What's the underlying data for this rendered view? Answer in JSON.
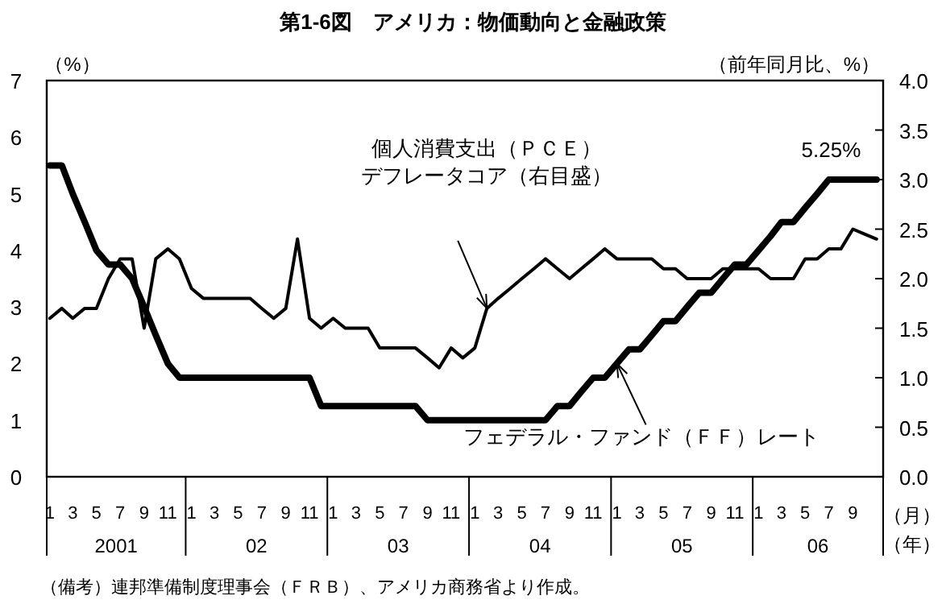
{
  "chart_data": {
    "type": "line",
    "title": "第1-6図　アメリカ：物価動向と金融政策",
    "x": [
      "2001-01",
      "2001-02",
      "2001-03",
      "2001-04",
      "2001-05",
      "2001-06",
      "2001-07",
      "2001-08",
      "2001-09",
      "2001-10",
      "2001-11",
      "2001-12",
      "2002-01",
      "2002-02",
      "2002-03",
      "2002-04",
      "2002-05",
      "2002-06",
      "2002-07",
      "2002-08",
      "2002-09",
      "2002-10",
      "2002-11",
      "2002-12",
      "2003-01",
      "2003-02",
      "2003-03",
      "2003-04",
      "2003-05",
      "2003-06",
      "2003-07",
      "2003-08",
      "2003-09",
      "2003-10",
      "2003-11",
      "2003-12",
      "2004-01",
      "2004-02",
      "2004-03",
      "2004-04",
      "2004-05",
      "2004-06",
      "2004-07",
      "2004-08",
      "2004-09",
      "2004-10",
      "2004-11",
      "2004-12",
      "2005-01",
      "2005-02",
      "2005-03",
      "2005-04",
      "2005-05",
      "2005-06",
      "2005-07",
      "2005-08",
      "2005-09",
      "2005-10",
      "2005-11",
      "2005-12",
      "2006-01",
      "2006-02",
      "2006-03",
      "2006-04",
      "2006-05",
      "2006-06",
      "2006-07",
      "2006-08",
      "2006-09",
      "2006-10",
      "2006-11"
    ],
    "xlim": [
      "2000-12-24",
      "2006-11-18"
    ],
    "xticks": [
      {
        "value": "2001-01",
        "label": "1"
      },
      {
        "value": "2001-03",
        "label": "3"
      },
      {
        "value": "2001-05",
        "label": "5"
      },
      {
        "value": "2001-07",
        "label": "7"
      },
      {
        "value": "2001-09",
        "label": "9"
      },
      {
        "value": "2001-11",
        "label": "11"
      },
      {
        "value": "2002-01",
        "label": "1"
      },
      {
        "value": "2002-03",
        "label": "3"
      },
      {
        "value": "2002-05",
        "label": "5"
      },
      {
        "value": "2002-07",
        "label": "7"
      },
      {
        "value": "2002-09",
        "label": "9"
      },
      {
        "value": "2002-11",
        "label": "11"
      },
      {
        "value": "2003-01",
        "label": "1"
      },
      {
        "value": "2003-03",
        "label": "3"
      },
      {
        "value": "2003-05",
        "label": "5"
      },
      {
        "value": "2003-07",
        "label": "7"
      },
      {
        "value": "2003-09",
        "label": "9"
      },
      {
        "value": "2003-11",
        "label": "11"
      },
      {
        "value": "2004-01",
        "label": "1"
      },
      {
        "value": "2004-03",
        "label": "3"
      },
      {
        "value": "2004-05",
        "label": "5"
      },
      {
        "value": "2004-07",
        "label": "7"
      },
      {
        "value": "2004-09",
        "label": "9"
      },
      {
        "value": "2004-11",
        "label": "11"
      },
      {
        "value": "2005-01",
        "label": "1"
      },
      {
        "value": "2005-03",
        "label": "3"
      },
      {
        "value": "2005-05",
        "label": "5"
      },
      {
        "value": "2005-07",
        "label": "7"
      },
      {
        "value": "2005-09",
        "label": "9"
      },
      {
        "value": "2005-11",
        "label": "11"
      },
      {
        "value": "2006-01",
        "label": "1"
      },
      {
        "value": "2006-03",
        "label": "3"
      },
      {
        "value": "2006-05",
        "label": "5"
      },
      {
        "value": "2006-07",
        "label": "7"
      },
      {
        "value": "2006-09",
        "label": "9"
      }
    ],
    "xlabel": "（月）",
    "ylabel": "（%）",
    "y2label": "（前年同月比、%）",
    "ylim": [
      0,
      7
    ],
    "yticks": [
      0,
      1,
      2,
      3,
      4,
      5,
      6,
      7
    ],
    "y2lim": [
      0,
      4
    ],
    "y2ticks": [
      {
        "value": 0,
        "label": "0.0"
      },
      {
        "value": 0.5,
        "label": "0.5"
      },
      {
        "value": 1,
        "label": "1.0"
      },
      {
        "value": 1.5,
        "label": "1.5"
      },
      {
        "value": 2,
        "label": "2.0"
      },
      {
        "value": 2.5,
        "label": "2.5"
      },
      {
        "value": 3,
        "label": "3.0"
      },
      {
        "value": 3.5,
        "label": "3.5"
      },
      {
        "value": 4,
        "label": "4.0"
      }
    ],
    "series": [
      {
        "color": "#000000",
        "values": [
          5.5,
          5.5,
          5.0,
          4.5,
          4.0,
          3.75,
          3.75,
          3.5,
          3.0,
          2.5,
          2.0,
          1.75,
          1.75,
          1.75,
          1.75,
          1.75,
          1.75,
          1.75,
          1.75,
          1.75,
          1.75,
          1.75,
          1.75,
          1.25,
          1.25,
          1.25,
          1.25,
          1.25,
          1.25,
          1.25,
          1.25,
          1.25,
          1.0,
          1.0,
          1.0,
          1.0,
          1.0,
          1.0,
          1.0,
          1.0,
          1.0,
          1.0,
          1.0,
          1.25,
          1.25,
          1.5,
          1.75,
          1.75,
          2.0,
          2.25,
          2.25,
          2.5,
          2.75,
          2.75,
          3.0,
          3.25,
          3.25,
          3.5,
          3.75,
          3.75,
          4.0,
          4.25,
          4.5,
          4.5,
          4.75,
          5.0,
          5.25,
          5.25,
          5.25,
          5.25,
          5.25
        ]
      },
      {
        "color": "#000000",
        "axis": "y2",
        "values": [
          1.6,
          1.7,
          1.6,
          1.7,
          1.7,
          2.0,
          2.2,
          2.2,
          1.5,
          2.2,
          2.3,
          2.2,
          1.9,
          1.8,
          1.8,
          1.8,
          1.8,
          1.8,
          1.7,
          1.6,
          1.7,
          2.4,
          1.6,
          1.5,
          1.6,
          1.5,
          1.5,
          1.5,
          1.3,
          1.3,
          1.3,
          1.3,
          1.2,
          1.1,
          1.3,
          1.2,
          1.3,
          1.7,
          1.8,
          1.9,
          2.0,
          2.1,
          2.2,
          2.1,
          2.0,
          2.1,
          2.2,
          2.3,
          2.2,
          2.2,
          2.2,
          2.2,
          2.1,
          2.1,
          2.0,
          2.0,
          2.0,
          2.1,
          2.1,
          2.1,
          2.1,
          2.0,
          2.0,
          2.0,
          2.2,
          2.2,
          2.3,
          2.3,
          2.5,
          2.45,
          2.4
        ]
      }
    ],
    "grid": false,
    "annotations": [
      "個人消費支出（ＰＣＥ）デフレータコア（右目盛）",
      {
        "text": "フェデラル・ファンド（ＦＦ）レート",
        "x": "2005-01",
        "y": 2.0
      },
      {
        "text": "5.25%",
        "x": "2006-08",
        "y": 5.25
      },
      "2001",
      "02",
      "03",
      "04",
      "05",
      "06",
      "（年）",
      "（備考）連邦準備制度理事会（ＦＲＢ）、アメリカ商務省より作成。"
    ]
  }
}
